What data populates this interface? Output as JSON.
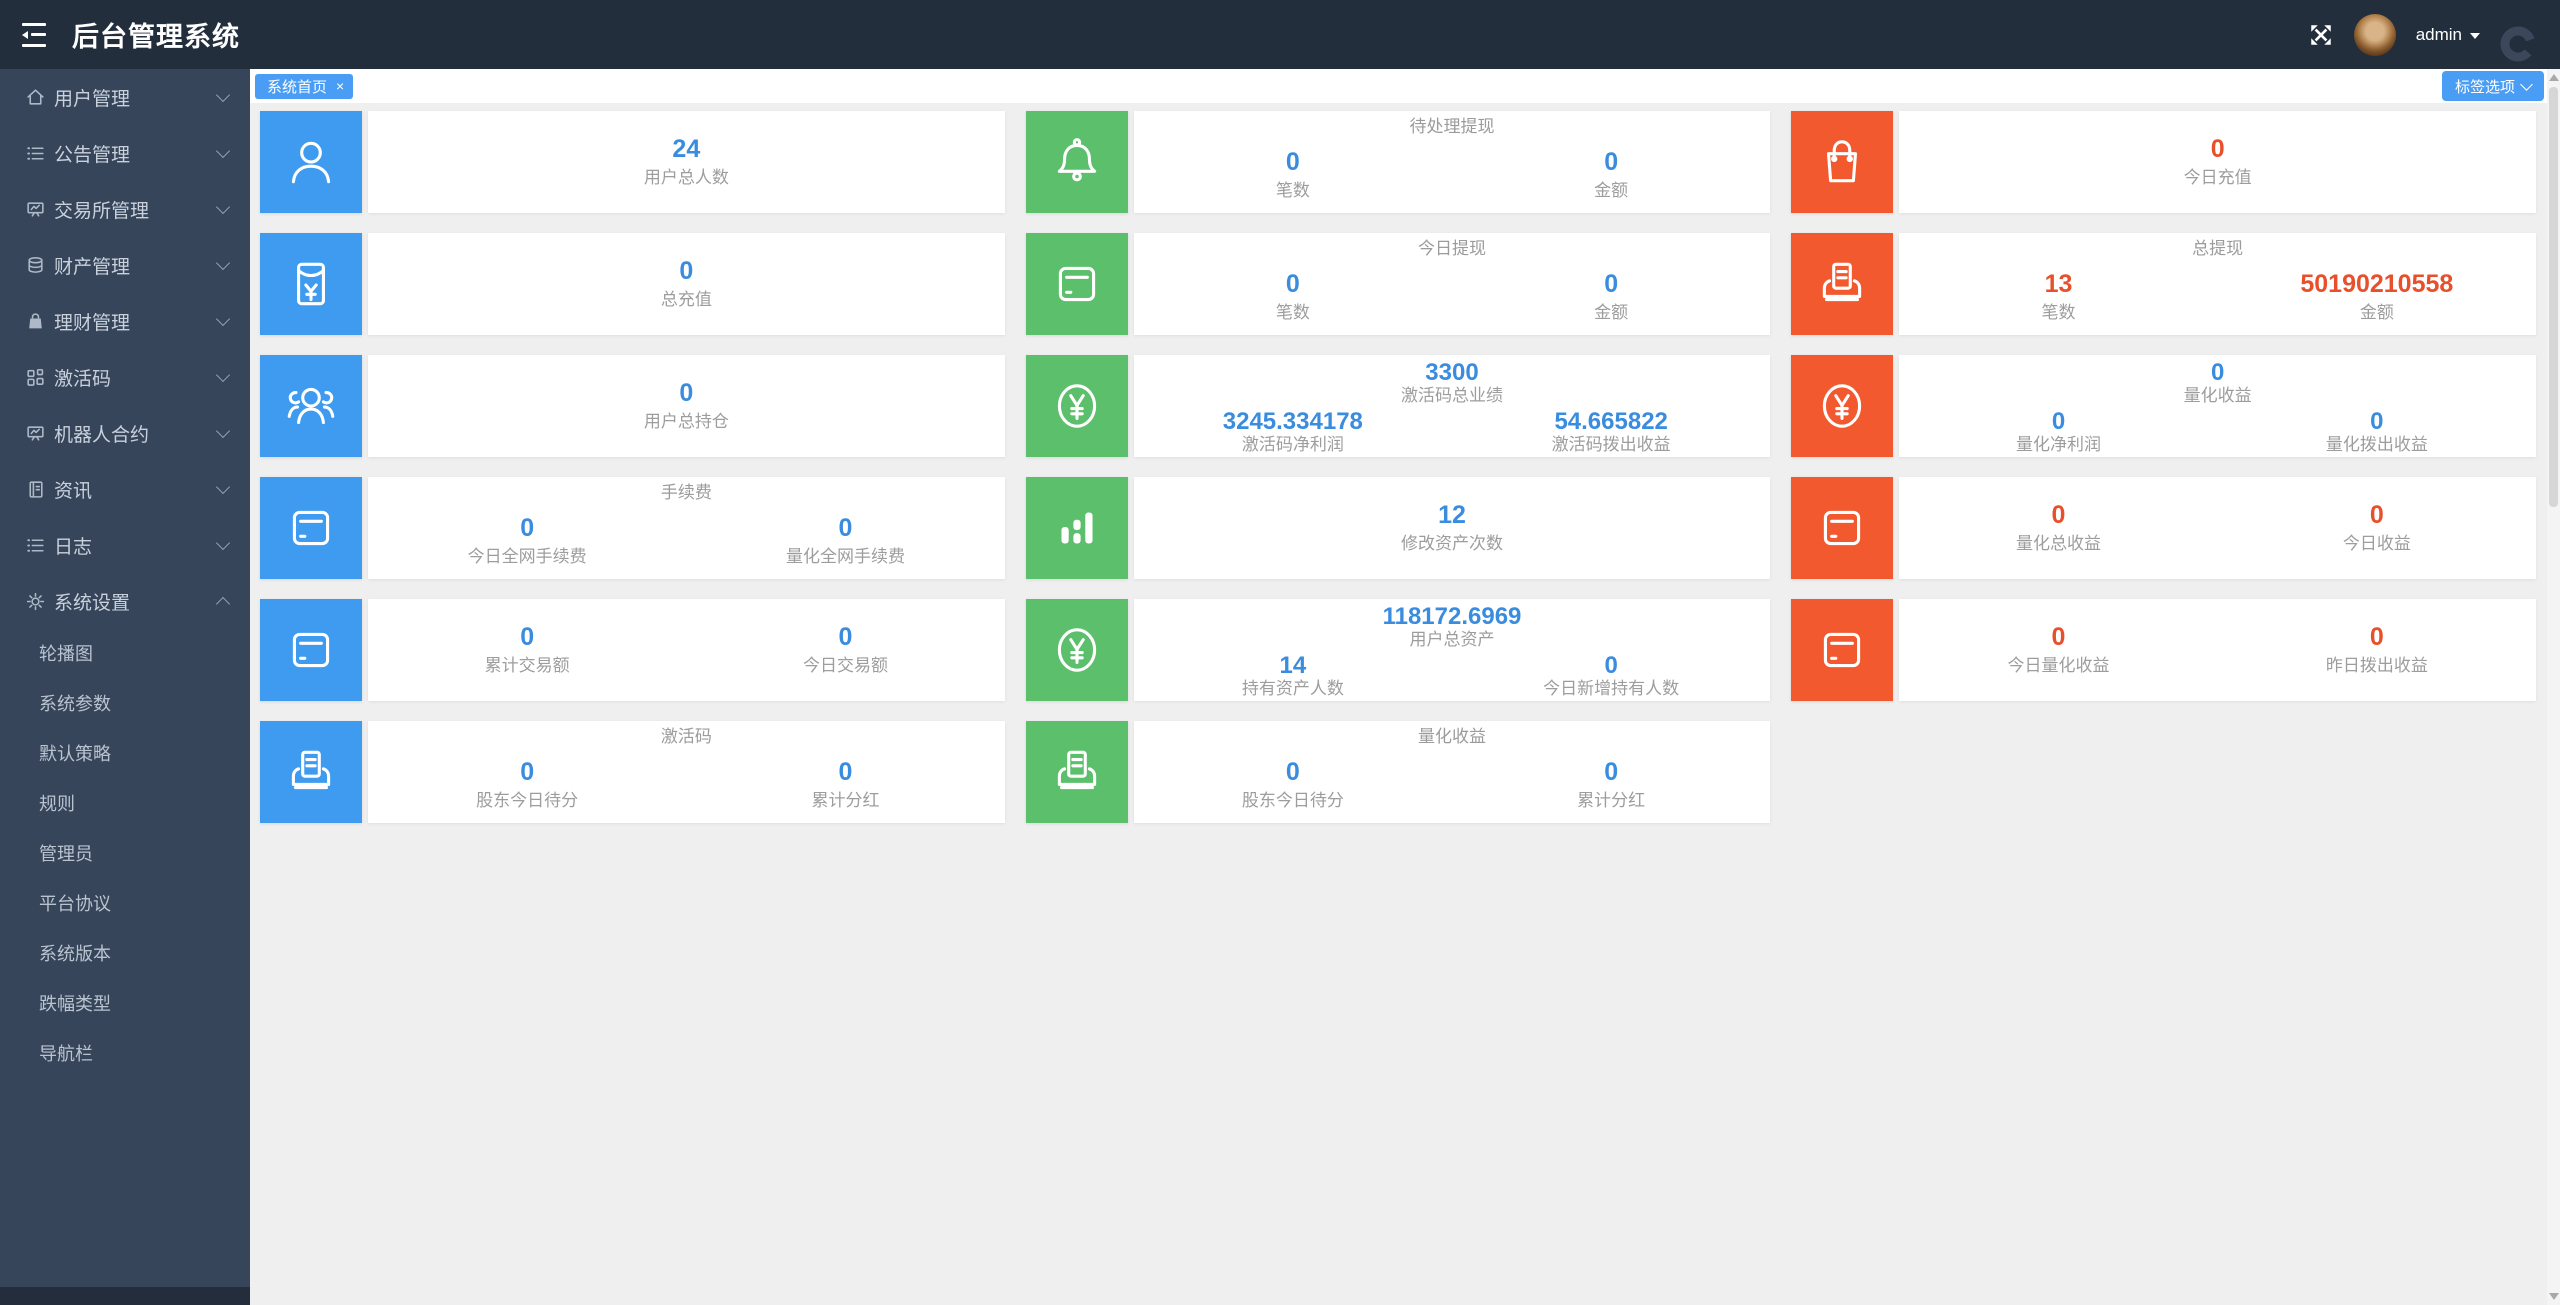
{
  "header": {
    "title": "后台管理系统",
    "user": "admin"
  },
  "sidebar": {
    "items": [
      {
        "label": "用户管理",
        "icon": "home",
        "caret": "down"
      },
      {
        "label": "公告管理",
        "icon": "list",
        "caret": "down"
      },
      {
        "label": "交易所管理",
        "icon": "board",
        "caret": "down"
      },
      {
        "label": "财产管理",
        "icon": "database",
        "caret": "down"
      },
      {
        "label": "理财管理",
        "icon": "bag-lock",
        "caret": "down"
      },
      {
        "label": "激活码",
        "icon": "grid",
        "caret": "down"
      },
      {
        "label": "机器人合约",
        "icon": "board",
        "caret": "down"
      },
      {
        "label": "资讯",
        "icon": "book",
        "caret": "down"
      },
      {
        "label": "日志",
        "icon": "list",
        "caret": "down"
      },
      {
        "label": "系统设置",
        "icon": "gear",
        "caret": "up",
        "expanded": true,
        "children": [
          "轮播图",
          "系统参数",
          "默认策略",
          "规则",
          "管理员",
          "平台协议",
          "系统版本",
          "跌幅类型",
          "导航栏"
        ]
      }
    ]
  },
  "tabbar": {
    "active_tab": "系统首页",
    "close_glyph": "×",
    "options_button": "标签选项"
  },
  "colors": {
    "blue": "#3f9bef",
    "green": "#5cbf6b",
    "red": "#f2592f",
    "value_blue": "#3a8cdf",
    "value_red": "#e8502c",
    "tab_blue": "#4a9df5"
  },
  "cards": [
    {
      "icon": "user",
      "accent": "blue",
      "stats": [
        {
          "value": "24",
          "label": "用户总人数",
          "color": "blue"
        }
      ]
    },
    {
      "icon": "bell",
      "accent": "green",
      "title": "待处理提现",
      "stats": [
        {
          "value": "0",
          "label": "笔数",
          "color": "blue"
        },
        {
          "value": "0",
          "label": "金额",
          "color": "blue"
        }
      ]
    },
    {
      "icon": "shopping-bag",
      "accent": "red",
      "stats": [
        {
          "value": "0",
          "label": "今日充值",
          "color": "red"
        }
      ]
    },
    {
      "icon": "envelope",
      "accent": "blue",
      "stats": [
        {
          "value": "0",
          "label": "总充值",
          "color": "blue"
        }
      ]
    },
    {
      "icon": "card",
      "accent": "green",
      "title": "今日提现",
      "stats": [
        {
          "value": "0",
          "label": "笔数",
          "color": "blue"
        },
        {
          "value": "0",
          "label": "金额",
          "color": "blue"
        }
      ]
    },
    {
      "icon": "printer",
      "accent": "red",
      "title": "总提现",
      "stats": [
        {
          "value": "13",
          "label": "笔数",
          "color": "red"
        },
        {
          "value": "50190210558",
          "label": "金额",
          "color": "red"
        }
      ]
    },
    {
      "icon": "users",
      "accent": "blue",
      "stats": [
        {
          "value": "0",
          "label": "用户总持仓",
          "color": "blue"
        }
      ]
    },
    {
      "icon": "yen",
      "accent": "green",
      "stats": [
        {
          "value": "3300",
          "label": "激活码总业绩",
          "color": "blue"
        },
        {
          "value": "3245.334178",
          "label": "激活码净利润",
          "color": "blue"
        },
        {
          "value": "54.665822",
          "label": "激活码拨出收益",
          "color": "blue"
        }
      ]
    },
    {
      "icon": "yen",
      "accent": "red",
      "stats": [
        {
          "value": "0",
          "label": "量化收益",
          "color": "blue"
        },
        {
          "value": "0",
          "label": "量化净利润",
          "color": "blue"
        },
        {
          "value": "0",
          "label": "量化拨出收益",
          "color": "blue"
        }
      ]
    },
    {
      "icon": "card",
      "accent": "blue",
      "title": "手续费",
      "stats": [
        {
          "value": "0",
          "label": "今日全网手续费",
          "color": "blue"
        },
        {
          "value": "0",
          "label": "量化全网手续费",
          "color": "blue"
        }
      ]
    },
    {
      "icon": "bar-chart",
      "accent": "green",
      "stats": [
        {
          "value": "12",
          "label": "修改资产次数",
          "color": "blue"
        }
      ]
    },
    {
      "icon": "card",
      "accent": "red",
      "stats": [
        {
          "value": "0",
          "label": "量化总收益",
          "color": "red"
        },
        {
          "value": "0",
          "label": "今日收益",
          "color": "red"
        }
      ]
    },
    {
      "icon": "card",
      "accent": "blue",
      "stats": [
        {
          "value": "0",
          "label": "累计交易额",
          "color": "blue"
        },
        {
          "value": "0",
          "label": "今日交易额",
          "color": "blue"
        }
      ]
    },
    {
      "icon": "yen",
      "accent": "green",
      "stats": [
        {
          "value": "118172.6969",
          "label": "用户总资产",
          "color": "blue"
        },
        {
          "value": "14",
          "label": "持有资产人数",
          "color": "blue"
        },
        {
          "value": "0",
          "label": "今日新增持有人数",
          "color": "blue"
        }
      ]
    },
    {
      "icon": "card",
      "accent": "red",
      "stats": [
        {
          "value": "0",
          "label": "今日量化收益",
          "color": "red"
        },
        {
          "value": "0",
          "label": "昨日拨出收益",
          "color": "red"
        }
      ]
    },
    {
      "icon": "printer",
      "accent": "blue",
      "title": "激活码",
      "stats": [
        {
          "value": "0",
          "label": "股东今日待分",
          "color": "blue"
        },
        {
          "value": "0",
          "label": "累计分红",
          "color": "blue"
        }
      ]
    },
    {
      "icon": "printer",
      "accent": "green",
      "title": "量化收益",
      "stats": [
        {
          "value": "0",
          "label": "股东今日待分",
          "color": "blue"
        },
        {
          "value": "0",
          "label": "累计分红",
          "color": "blue"
        }
      ]
    }
  ]
}
